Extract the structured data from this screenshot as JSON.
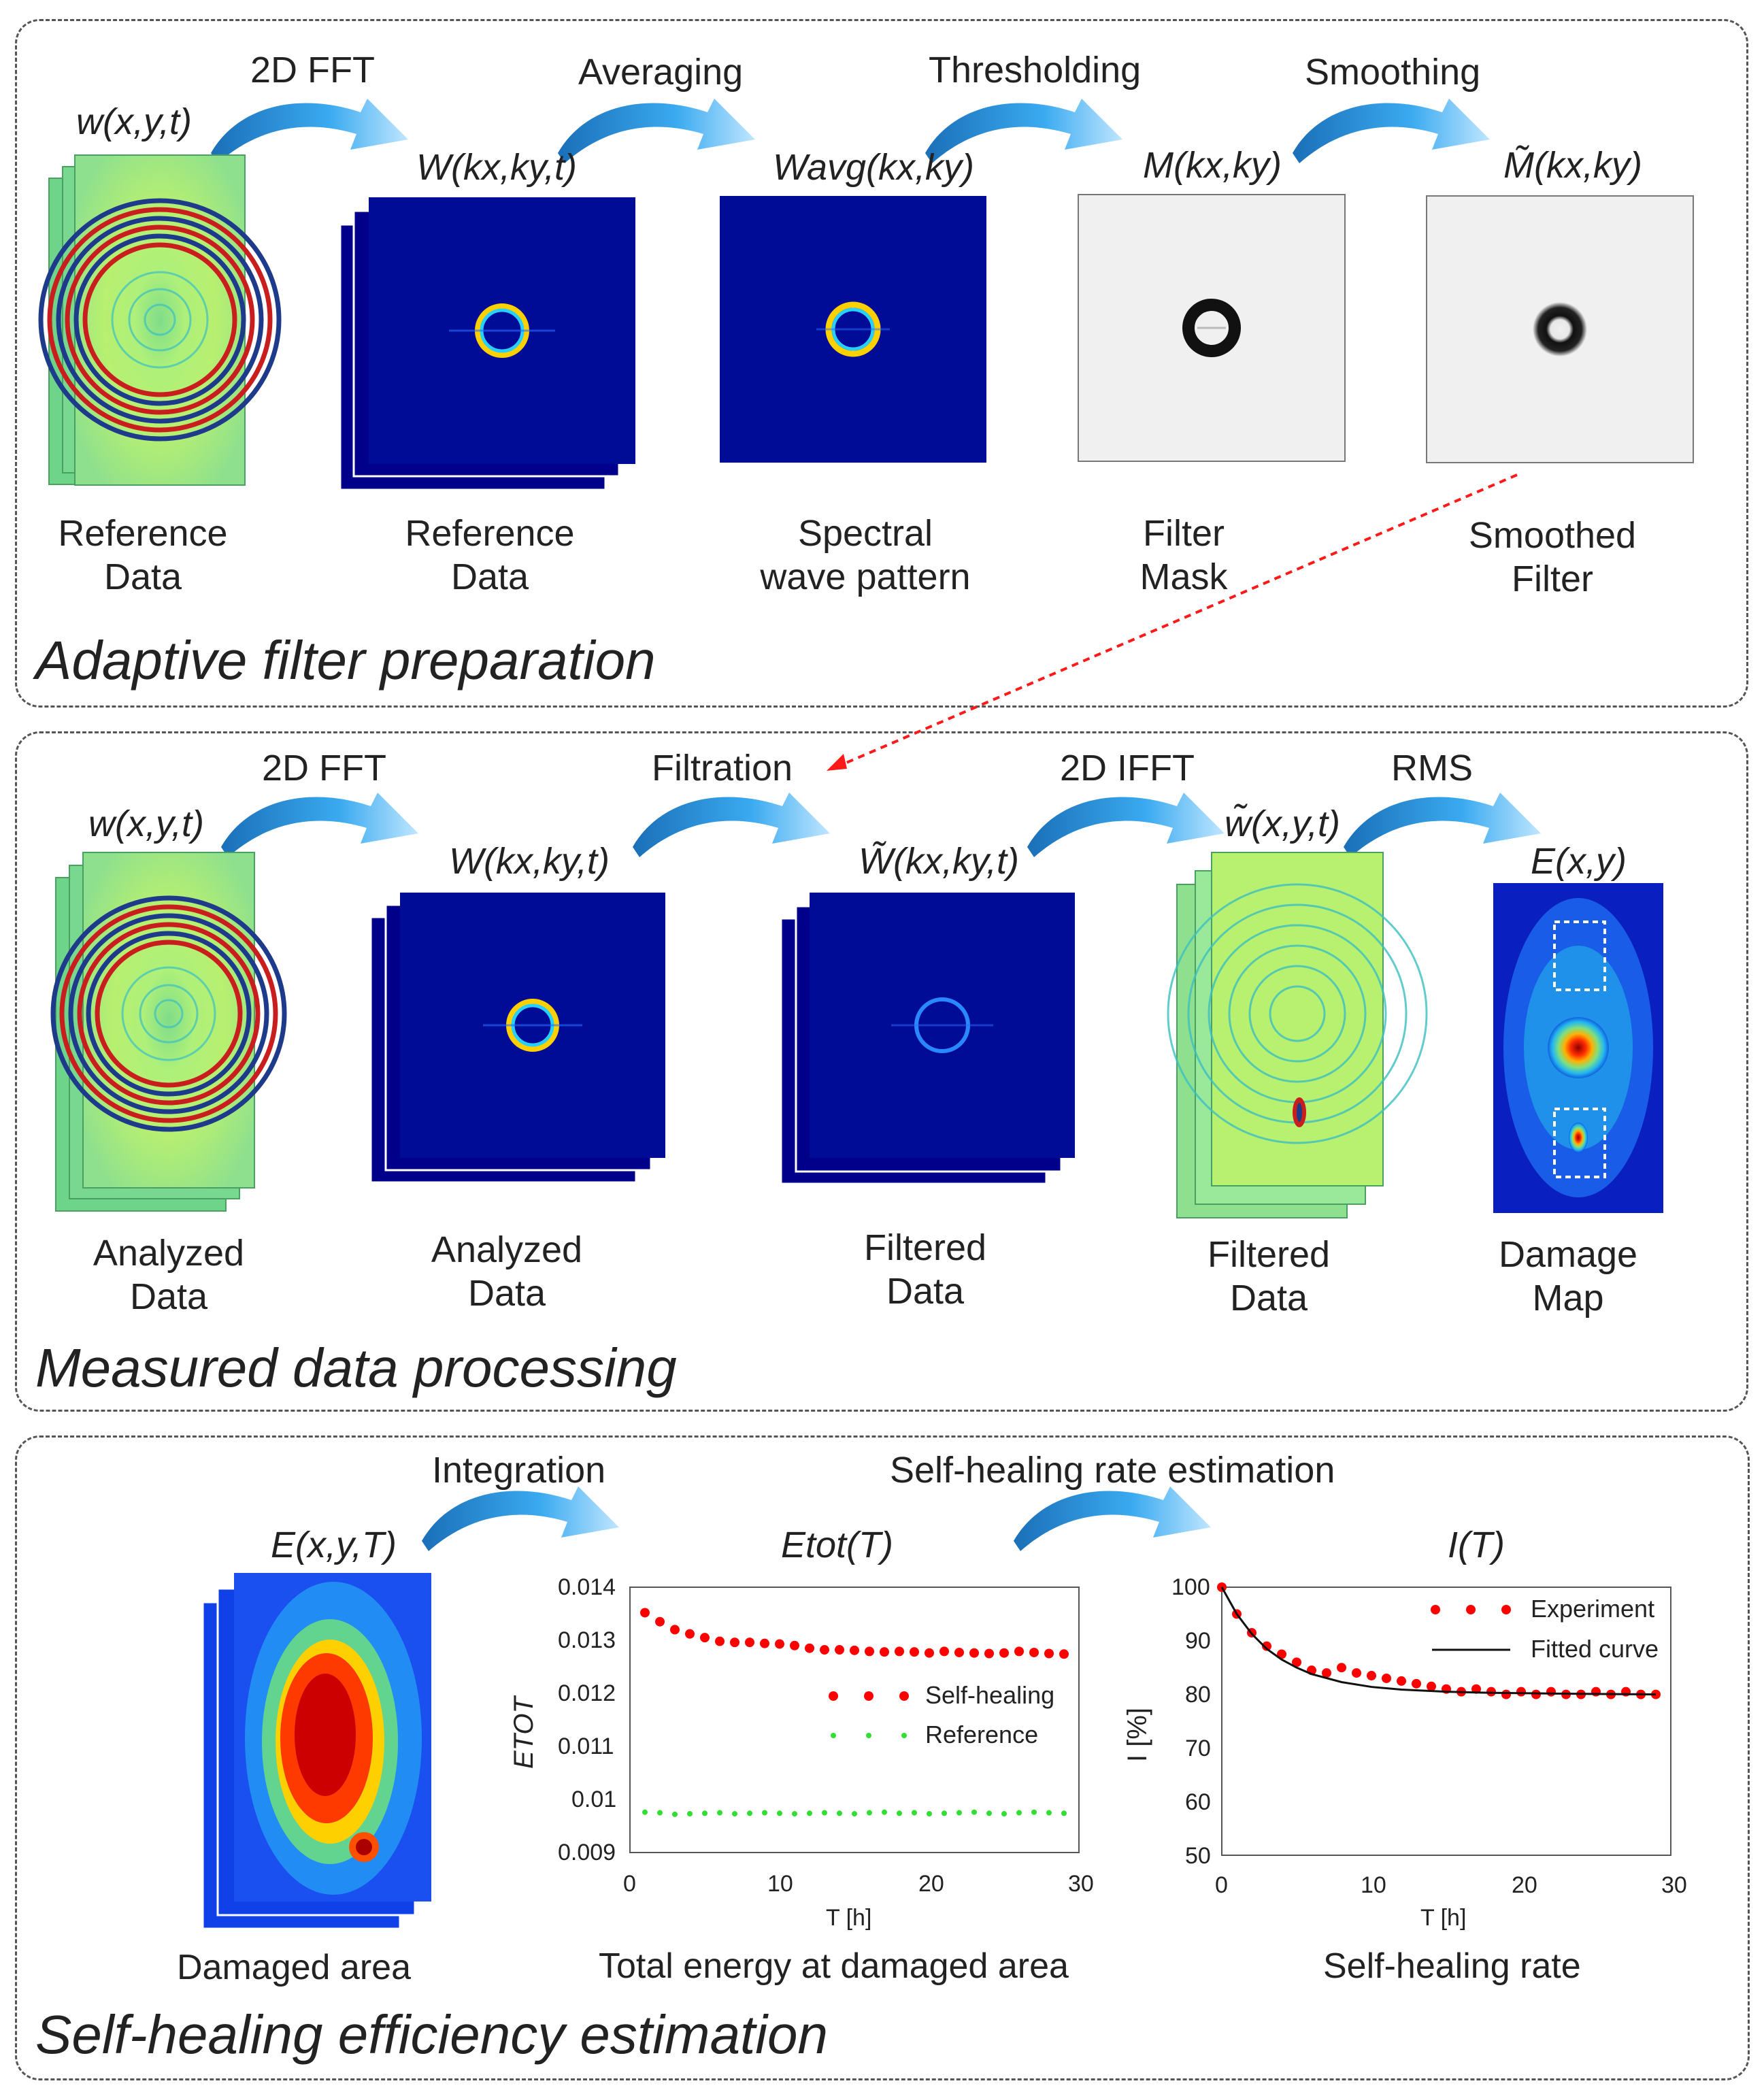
{
  "panels": {
    "adaptive": {
      "title": "Adaptive filter preparation",
      "steps": [
        "2D FFT",
        "Averaging",
        "Thresholding",
        "Smoothing"
      ],
      "vars": [
        "w(x,y,t)",
        "W(kx,ky,t)",
        "Wavg(kx,ky)",
        "M(kx,ky)",
        "M̃(kx,ky)"
      ],
      "labels": [
        [
          "Reference",
          "Data"
        ],
        [
          "Reference",
          "Data"
        ],
        [
          "Spectral",
          "wave pattern"
        ],
        [
          "Filter",
          "Mask"
        ],
        [
          "Smoothed",
          "Filter"
        ]
      ]
    },
    "measured": {
      "title": "Measured data processing",
      "steps": [
        "2D FFT",
        "Filtration",
        "2D IFFT",
        "RMS"
      ],
      "vars": [
        "w(x,y,t)",
        "W(kx,ky,t)",
        "W̃(kx,ky,t)",
        "w̃(x,y,t)",
        "E(x,y)"
      ],
      "labels": [
        [
          "Analyzed",
          "Data"
        ],
        [
          "Analyzed",
          "Data"
        ],
        [
          "Filtered",
          "Data"
        ],
        [
          "Filtered",
          "Data"
        ],
        [
          "Damage",
          "Map"
        ]
      ]
    },
    "selfheal": {
      "title": "Self-healing efficiency estimation",
      "steps": [
        "Integration",
        "Self-healing rate estimation"
      ],
      "vars": [
        "E(x,y,T)",
        "Etot(T)",
        "I(T)"
      ],
      "labels": [
        "Damaged area",
        "Total energy at damaged area",
        "Self-healing rate"
      ]
    }
  },
  "chart_data": [
    {
      "type": "scatter",
      "title": "Etot(T)",
      "xlabel": "T [h]",
      "ylabel": "ETOT",
      "xlim": [
        0,
        30
      ],
      "ylim": [
        0.009,
        0.014
      ],
      "xticks": [
        "0",
        "10",
        "20",
        "30"
      ],
      "yticks": [
        "0.009",
        "0.01",
        "0.011",
        "0.012",
        "0.013",
        "0.014"
      ],
      "legend_position": "center-right",
      "series": [
        {
          "name": "Self-healing",
          "color": "#ff0000",
          "x": [
            1,
            2,
            3,
            4,
            5,
            6,
            7,
            8,
            9,
            10,
            11,
            12,
            13,
            14,
            15,
            16,
            17,
            18,
            19,
            20,
            21,
            22,
            23,
            24,
            25,
            26,
            27,
            28,
            29
          ],
          "values": [
            0.01352,
            0.01335,
            0.0132,
            0.01312,
            0.01305,
            0.01298,
            0.01296,
            0.01296,
            0.01294,
            0.01293,
            0.0129,
            0.01285,
            0.01282,
            0.01282,
            0.01281,
            0.01279,
            0.01278,
            0.01279,
            0.01278,
            0.01276,
            0.01279,
            0.01277,
            0.01276,
            0.01275,
            0.01276,
            0.01279,
            0.01277,
            0.01275,
            0.01274
          ]
        },
        {
          "name": "Reference",
          "color": "#33dd33",
          "x": [
            1,
            2,
            3,
            4,
            5,
            6,
            7,
            8,
            9,
            10,
            11,
            12,
            13,
            14,
            15,
            16,
            17,
            18,
            19,
            20,
            21,
            22,
            23,
            24,
            25,
            26,
            27,
            28,
            29
          ],
          "values": [
            0.00976,
            0.00975,
            0.00972,
            0.00973,
            0.00974,
            0.00975,
            0.00973,
            0.00974,
            0.00975,
            0.00974,
            0.00973,
            0.00974,
            0.00975,
            0.00974,
            0.00973,
            0.00975,
            0.00976,
            0.00974,
            0.00975,
            0.00973,
            0.00974,
            0.00975,
            0.00976,
            0.00974,
            0.00973,
            0.00975,
            0.00976,
            0.00975,
            0.00974
          ]
        }
      ]
    },
    {
      "type": "scatter",
      "title": "I(T)",
      "xlabel": "T [h]",
      "ylabel": "I [%]",
      "xlim": [
        0,
        30
      ],
      "ylim": [
        50,
        100
      ],
      "xticks": [
        "0",
        "10",
        "20",
        "30"
      ],
      "yticks": [
        "50",
        "60",
        "70",
        "80",
        "90",
        "100"
      ],
      "legend_position": "top-right",
      "series": [
        {
          "name": "Experiment",
          "color": "#ff0000",
          "x": [
            0,
            1,
            2,
            3,
            4,
            5,
            6,
            7,
            8,
            9,
            10,
            11,
            12,
            13,
            14,
            15,
            16,
            17,
            18,
            19,
            20,
            21,
            22,
            23,
            24,
            25,
            26,
            27,
            28,
            29
          ],
          "values": [
            100,
            95,
            91.5,
            89,
            87.5,
            86,
            84.5,
            84,
            85,
            84,
            83.5,
            83,
            82.5,
            82,
            81.5,
            81,
            80.5,
            81,
            80.5,
            80,
            80.5,
            80,
            80.5,
            80,
            80,
            80.5,
            80,
            80.5,
            80,
            80
          ]
        },
        {
          "name": "Fitted curve",
          "color": "#111111",
          "x": [
            0,
            1,
            2,
            3,
            4,
            5,
            6,
            8,
            10,
            12,
            15,
            18,
            21,
            24,
            27,
            29
          ],
          "values": [
            100,
            95,
            91.3,
            88.5,
            86.5,
            85,
            83.8,
            82.3,
            81.4,
            80.9,
            80.5,
            80.3,
            80.2,
            80.1,
            80.05,
            80
          ]
        }
      ]
    }
  ]
}
